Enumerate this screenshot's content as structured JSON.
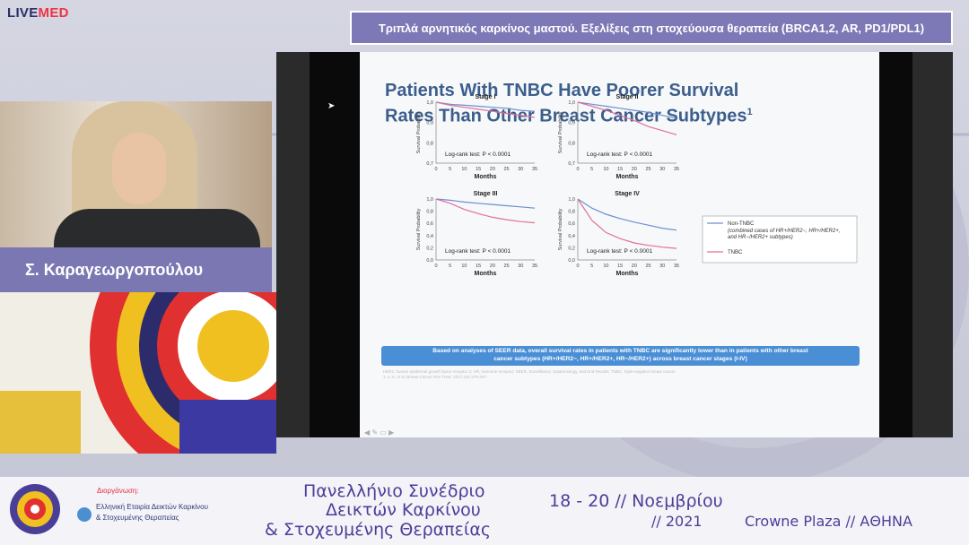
{
  "brand": {
    "live": "LIVE",
    "med": "MED"
  },
  "session_title": "Τριπλά αρνητικός καρκίνος μαστού. Εξελίξεις στη στοχεύουσα θεραπεία (BRCA1,2, AR, PD1/PDL1)",
  "speaker": "Σ. Καραγεωργοπούλου",
  "slide": {
    "title_l1": "Patients With TNBC Have Poorer Survival",
    "title_l2": "Rates Than Other Breast Cancer Subtypes",
    "title_sup": "1",
    "ylabel": "Survival Probability",
    "xlabel": "Months",
    "logrank": "Log-rank test: P < 0.0001",
    "legend": {
      "non_tnbc": "Non-TNBC",
      "non_tnbc_detail_1": "(combined cases of HR+/HER2−, HR+/HER2+,",
      "non_tnbc_detail_2": "and HR−/HER2+ subtypes)",
      "tnbc": "TNBC"
    },
    "summary_l1": "Based on analyses of SEER data, overall survival rates in patients with TNBC are significantly lower than in patients with other breast",
    "summary_l2": "cancer subtypes (HR+/HER2−, HR+/HER2+, HR−/HER2+) across breast cancer stages (I-IV)",
    "footnote_l1": "HER2, human epidermal growth factor receptor 2; HR, hormone receptor; SEER, Surveillance, Epidemiology, and End Results; TNBC, triple-negative breast cancer.",
    "footnote_l2": "1. Li X, et al. Breast Cancer Res Treat. 2017;161:279-287."
  },
  "chart_data": [
    {
      "type": "line",
      "title": "Stage I",
      "x": [
        0,
        5,
        10,
        15,
        20,
        25,
        30,
        35
      ],
      "ylim": [
        0.7,
        1.0
      ],
      "xlabel": "Months",
      "ylabel": "Survival Probability",
      "series": [
        {
          "name": "Non-TNBC",
          "color": "#6a8fd0",
          "values": [
            1.0,
            0.99,
            0.985,
            0.98,
            0.975,
            0.97,
            0.96,
            0.955
          ]
        },
        {
          "name": "TNBC",
          "color": "#e0709a",
          "values": [
            1.0,
            0.985,
            0.975,
            0.965,
            0.955,
            0.945,
            0.935,
            0.925
          ]
        }
      ]
    },
    {
      "type": "line",
      "title": "Stage II",
      "x": [
        0,
        5,
        10,
        15,
        20,
        25,
        30,
        35
      ],
      "ylim": [
        0.7,
        1.0
      ],
      "xlabel": "Months",
      "ylabel": "Survival Probability",
      "series": [
        {
          "name": "Non-TNBC",
          "color": "#6a8fd0",
          "values": [
            1.0,
            0.99,
            0.98,
            0.97,
            0.96,
            0.95,
            0.935,
            0.92
          ]
        },
        {
          "name": "TNBC",
          "color": "#e0709a",
          "values": [
            1.0,
            0.98,
            0.96,
            0.935,
            0.91,
            0.88,
            0.86,
            0.84
          ]
        }
      ]
    },
    {
      "type": "line",
      "title": "Stage III",
      "x": [
        0,
        5,
        10,
        15,
        20,
        25,
        30,
        35
      ],
      "ylim": [
        0.0,
        1.0
      ],
      "xlabel": "Months",
      "ylabel": "Survival Probability",
      "series": [
        {
          "name": "Non-TNBC",
          "color": "#6a8fd0",
          "values": [
            1.0,
            0.98,
            0.95,
            0.93,
            0.91,
            0.89,
            0.87,
            0.85
          ]
        },
        {
          "name": "TNBC",
          "color": "#e0709a",
          "values": [
            1.0,
            0.93,
            0.83,
            0.76,
            0.7,
            0.66,
            0.63,
            0.61
          ]
        }
      ]
    },
    {
      "type": "line",
      "title": "Stage IV",
      "x": [
        0,
        5,
        10,
        15,
        20,
        25,
        30,
        35
      ],
      "ylim": [
        0.0,
        1.0
      ],
      "xlabel": "Months",
      "ylabel": "Survival Probability",
      "series": [
        {
          "name": "Non-TNBC",
          "color": "#6a8fd0",
          "values": [
            1.0,
            0.85,
            0.75,
            0.68,
            0.62,
            0.57,
            0.52,
            0.49
          ]
        },
        {
          "name": "TNBC",
          "color": "#e0709a",
          "values": [
            1.0,
            0.65,
            0.45,
            0.35,
            0.28,
            0.24,
            0.21,
            0.19
          ]
        }
      ]
    }
  ],
  "footer": {
    "organizer": "Διοργάνωση:",
    "society_1": "Ελληνική Εταιρία Δεικτών Καρκίνου",
    "society_2": "& Στοχευμένης Θεραπείας",
    "conf_1": "Πανελλήνιο Συνέδριο",
    "conf_2": "Δεικτών Καρκίνου",
    "conf_3": "& Στοχευμένης Θεραπείας",
    "dates": "18 - 20 // Νοεμβρίου",
    "year": "// 2021",
    "venue": "Crowne Plaza // ΑΘΗΝΑ"
  }
}
